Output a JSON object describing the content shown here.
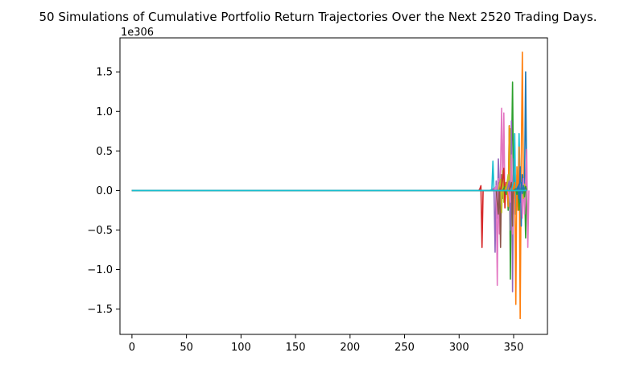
{
  "chart_data": {
    "type": "line",
    "title": "50 Simulations of Cumulative Portfolio Return Trajectories Over the Next 2520 Trading Days.",
    "xlabel": "",
    "ylabel": "",
    "y_offset_text": "1e306",
    "xlim": [
      -11,
      381
    ],
    "ylim": [
      -1.82,
      1.93
    ],
    "x_ticks": [
      0,
      50,
      100,
      150,
      200,
      250,
      300,
      350
    ],
    "y_ticks": [
      -1.5,
      -1.0,
      -0.5,
      0.0,
      0.5,
      1.0,
      1.5
    ],
    "x_tick_labels": [
      "0",
      "50",
      "100",
      "150",
      "200",
      "250",
      "300",
      "350"
    ],
    "y_tick_labels": [
      "−1.5",
      "−1.0",
      "−0.5",
      "0.0",
      "0.5",
      "1.0",
      "1.5"
    ],
    "grid": false,
    "legend": "none",
    "series": [
      {
        "color": "#d62728",
        "x": [
          0,
          318,
          319,
          320,
          321,
          322
        ],
        "y": [
          0,
          0,
          0.02,
          0.06,
          -0.72,
          0
        ]
      },
      {
        "color": "#17becf",
        "x": [
          0,
          328,
          330,
          331,
          332,
          333
        ],
        "y": [
          0,
          0,
          0.01,
          0.37,
          0,
          0
        ]
      },
      {
        "color": "#9467bd",
        "x": [
          0,
          330,
          332,
          333,
          334,
          335,
          336,
          337,
          338
        ],
        "y": [
          0,
          0,
          0.03,
          -0.78,
          0.12,
          -0.35,
          0.4,
          -0.02,
          0
        ]
      },
      {
        "color": "#e377c2",
        "x": [
          0,
          332,
          334,
          335,
          336,
          337,
          338,
          339,
          340,
          341,
          342,
          343
        ],
        "y": [
          0,
          0,
          0.06,
          -1.2,
          0.15,
          -0.55,
          0.3,
          1.04,
          -0.05,
          0.98,
          -0.1,
          0
        ]
      },
      {
        "color": "#8c564b",
        "x": [
          0,
          334,
          336,
          337,
          338,
          339,
          340,
          341,
          342
        ],
        "y": [
          0,
          0,
          -0.3,
          0.1,
          -0.72,
          0.2,
          -0.1,
          0.05,
          0
        ]
      },
      {
        "color": "#bcbd22",
        "x": [
          0,
          336,
          338,
          339,
          340,
          341,
          342,
          343,
          344,
          345
        ],
        "y": [
          0,
          0,
          0.14,
          -0.28,
          0.25,
          -0.15,
          0.08,
          0.02,
          -0.05,
          0
        ]
      },
      {
        "color": "#d62728",
        "x": [
          0,
          338,
          340,
          341,
          342,
          343,
          344,
          345
        ],
        "y": [
          0,
          0,
          0.15,
          0.28,
          -0.22,
          0.1,
          0,
          0
        ]
      },
      {
        "color": "#2ca02c",
        "x": [
          0,
          340,
          342,
          343,
          344,
          345,
          346,
          347,
          348,
          349,
          350
        ],
        "y": [
          0,
          0,
          0.05,
          -0.05,
          0.1,
          -0.25,
          0.82,
          -1.12,
          0.3,
          1.37,
          -0.1
        ]
      },
      {
        "color": "#ff7f0e",
        "x": [
          0,
          342,
          344,
          345,
          346,
          347,
          348,
          349,
          350
        ],
        "y": [
          0,
          0,
          0.1,
          -0.2,
          0.82,
          -0.12,
          0.3,
          0,
          0
        ]
      },
      {
        "color": "#bcbd22",
        "x": [
          0,
          343,
          345,
          346,
          347,
          348,
          349,
          350,
          351
        ],
        "y": [
          0,
          0,
          0.2,
          -0.22,
          0.78,
          0.05,
          -0.3,
          0.02,
          0
        ]
      },
      {
        "color": "#9467bd",
        "x": [
          0,
          344,
          346,
          347,
          348,
          349,
          350,
          351,
          352
        ],
        "y": [
          0,
          0,
          0.12,
          -0.5,
          0.88,
          -1.28,
          0.35,
          -0.2,
          0
        ]
      },
      {
        "color": "#e377c2",
        "x": [
          0,
          345,
          347,
          348,
          349,
          350,
          351,
          352,
          353
        ],
        "y": [
          0,
          0,
          -0.15,
          0.45,
          -0.55,
          0.4,
          -0.3,
          0.05,
          0
        ]
      },
      {
        "color": "#8c564b",
        "x": [
          0,
          346,
          348,
          349,
          350,
          351,
          352,
          353
        ],
        "y": [
          0,
          0,
          0.1,
          -0.45,
          0.4,
          -0.1,
          0,
          0
        ]
      },
      {
        "color": "#17becf",
        "x": [
          0,
          348,
          350,
          351,
          352,
          353,
          354,
          355,
          356
        ],
        "y": [
          0,
          0,
          0.12,
          0.72,
          -0.3,
          0.2,
          -0.1,
          0.72,
          -0.05
        ]
      },
      {
        "color": "#ff7f0e",
        "x": [
          0,
          349,
          351,
          352,
          353,
          354,
          355,
          356,
          357,
          358,
          359,
          360,
          361
        ],
        "y": [
          0,
          0,
          0.1,
          -1.44,
          0.3,
          -0.25,
          0.55,
          -1.62,
          0.4,
          1.75,
          -0.1,
          0.05,
          0
        ]
      },
      {
        "color": "#2ca02c",
        "x": [
          0,
          350,
          352,
          353,
          354,
          355,
          356,
          357,
          358,
          359,
          360,
          361,
          362
        ],
        "y": [
          0,
          0,
          0.02,
          -0.05,
          0.05,
          -0.25,
          0.1,
          -0.05,
          0.05,
          0.02,
          0.1,
          -0.6,
          0
        ]
      },
      {
        "color": "#1f77b4",
        "x": [
          0,
          352,
          354,
          355,
          356,
          357,
          358,
          359,
          360,
          361,
          362
        ],
        "y": [
          0,
          0,
          0.05,
          -0.1,
          0.3,
          -0.45,
          0.2,
          0.05,
          0.1,
          1.5,
          0
        ]
      },
      {
        "color": "#e377c2",
        "x": [
          0,
          355,
          357,
          358,
          359,
          360,
          361,
          362,
          363,
          364
        ],
        "y": [
          0,
          0,
          0.1,
          -0.35,
          0.15,
          -0.3,
          0.05,
          0.52,
          -0.72,
          0
        ]
      },
      {
        "color": "#bcbd22",
        "x": [
          0,
          356,
          358,
          359,
          360,
          361,
          362
        ],
        "y": [
          0,
          0,
          0.05,
          -0.1,
          0.08,
          0.02,
          0
        ]
      },
      {
        "color": "#2ca02c",
        "x": [
          0,
          357,
          359,
          360,
          361,
          362
        ],
        "y": [
          0,
          0,
          0.04,
          -0.08,
          0.05,
          0
        ]
      },
      {
        "color": "#1f77b4",
        "x": [
          0,
          353,
          355,
          356,
          357,
          358,
          359,
          360,
          361
        ],
        "y": [
          0,
          0,
          0.08,
          -0.15,
          0.1,
          -0.04,
          0.06,
          0.02,
          0
        ]
      },
      {
        "color": "#7f7f7f",
        "x": [
          0,
          360,
          361,
          362
        ],
        "y": [
          0,
          0,
          0.01,
          0
        ]
      },
      {
        "color": "#17becf",
        "x": [
          0,
          362
        ],
        "y": [
          0,
          0
        ]
      }
    ]
  }
}
